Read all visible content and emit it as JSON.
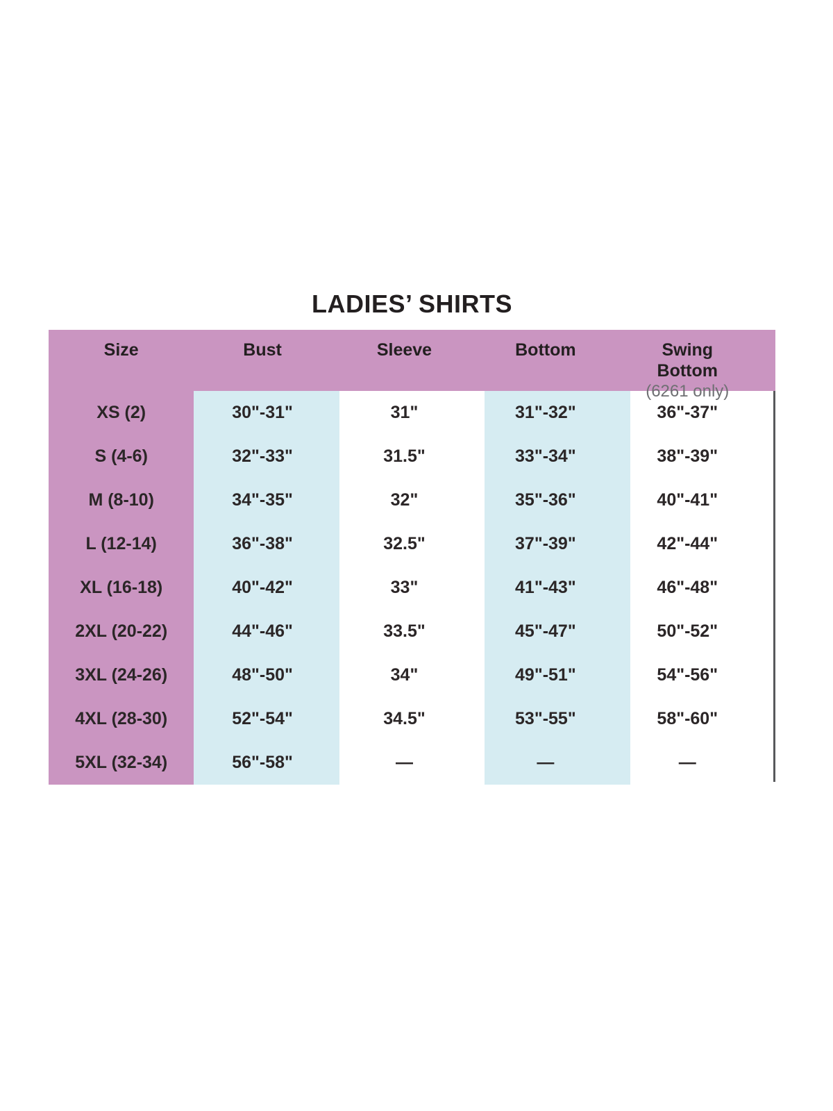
{
  "chart_data": {
    "type": "table",
    "title": "LADIES’ SHIRTS",
    "columns": [
      {
        "key": "size",
        "label": "Size"
      },
      {
        "key": "bust",
        "label": "Bust"
      },
      {
        "key": "sleeve",
        "label": "Sleeve"
      },
      {
        "key": "bottom",
        "label": "Bottom"
      },
      {
        "key": "swing-bottom",
        "label": "Swing Bottom",
        "sub": "(6261 only)"
      }
    ],
    "rows": [
      [
        "XS (2)",
        "30\"-31\"",
        "31\"",
        "31\"-32\"",
        "36\"-37\""
      ],
      [
        "S (4-6)",
        "32\"-33\"",
        "31.5\"",
        "33\"-34\"",
        "38\"-39\""
      ],
      [
        "M (8-10)",
        "34\"-35\"",
        "32\"",
        "35\"-36\"",
        "40\"-41\""
      ],
      [
        "L (12-14)",
        "36\"-38\"",
        "32.5\"",
        "37\"-39\"",
        "42\"-44\""
      ],
      [
        "XL (16-18)",
        "40\"-42\"",
        "33\"",
        "41\"-43\"",
        "46\"-48\""
      ],
      [
        "2XL (20-22)",
        "44\"-46\"",
        "33.5\"",
        "45\"-47\"",
        "50\"-52\""
      ],
      [
        "3XL (24-26)",
        "48\"-50\"",
        "34\"",
        "49\"-51\"",
        "54\"-56\""
      ],
      [
        "4XL (28-30)",
        "52\"-54\"",
        "34.5\"",
        "53\"-55\"",
        "58\"-60\""
      ],
      [
        "5XL (32-34)",
        "56\"-58\"",
        "—",
        "—",
        "—"
      ]
    ],
    "layout": {
      "header_background": "#ca95c1",
      "size_column_background": "#ca95c1",
      "bust_bottom_band_background": "#d6ecf2",
      "right_rule_color": "#58595b",
      "text_color": "#231f20",
      "sub_label_color": "#6f7073"
    }
  }
}
